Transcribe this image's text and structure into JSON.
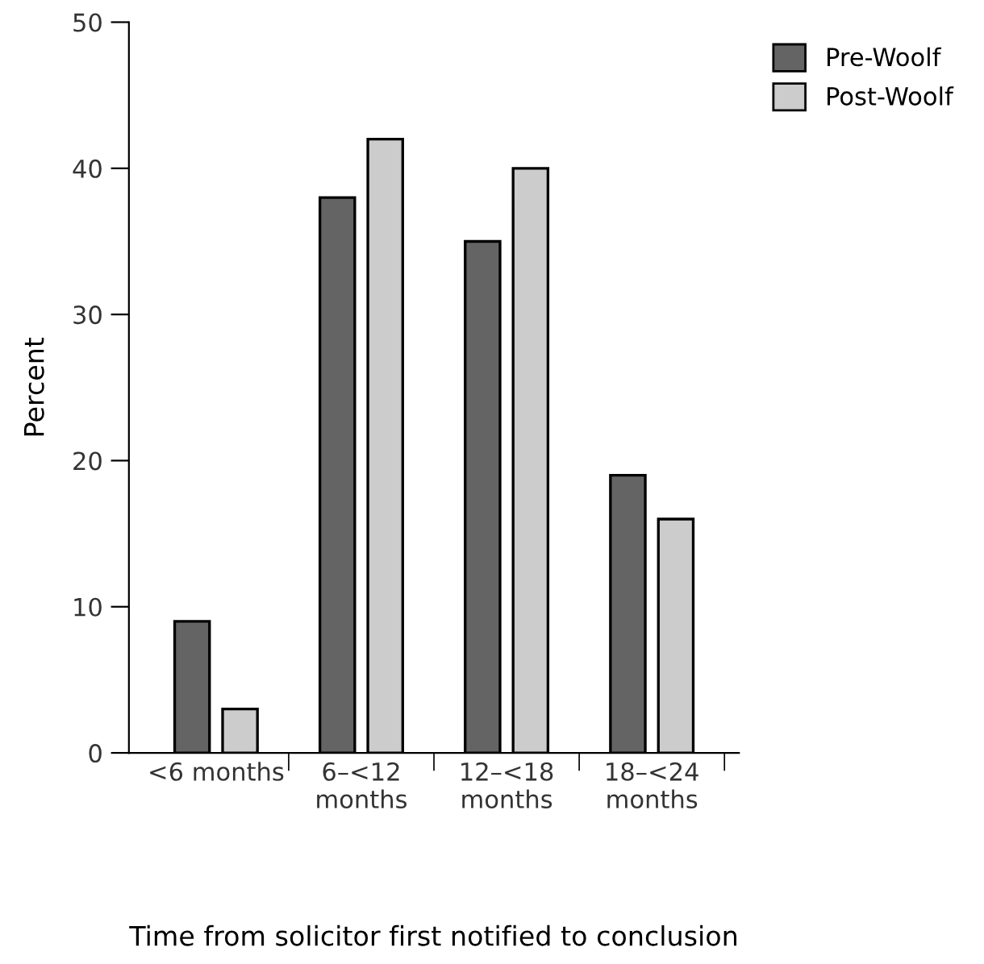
{
  "chart_data": {
    "type": "bar",
    "xlabel": "Time from solicitor first notified to conclusion",
    "ylabel": "Percent",
    "categories": [
      "<6 months",
      "6–<12\nmonths",
      "12–<18\nmonths",
      "18–<24\nmonths"
    ],
    "series": [
      {
        "name": "Pre-Woolf",
        "color": "#646464",
        "values": [
          9,
          38,
          35,
          19
        ]
      },
      {
        "name": "Post-Woolf",
        "color": "#cccccc",
        "values": [
          3,
          42,
          40,
          16
        ]
      }
    ],
    "ylim": [
      0,
      50
    ],
    "yticks": [
      0,
      10,
      20,
      30,
      40,
      50
    ],
    "grid": false,
    "legend": "top right"
  }
}
